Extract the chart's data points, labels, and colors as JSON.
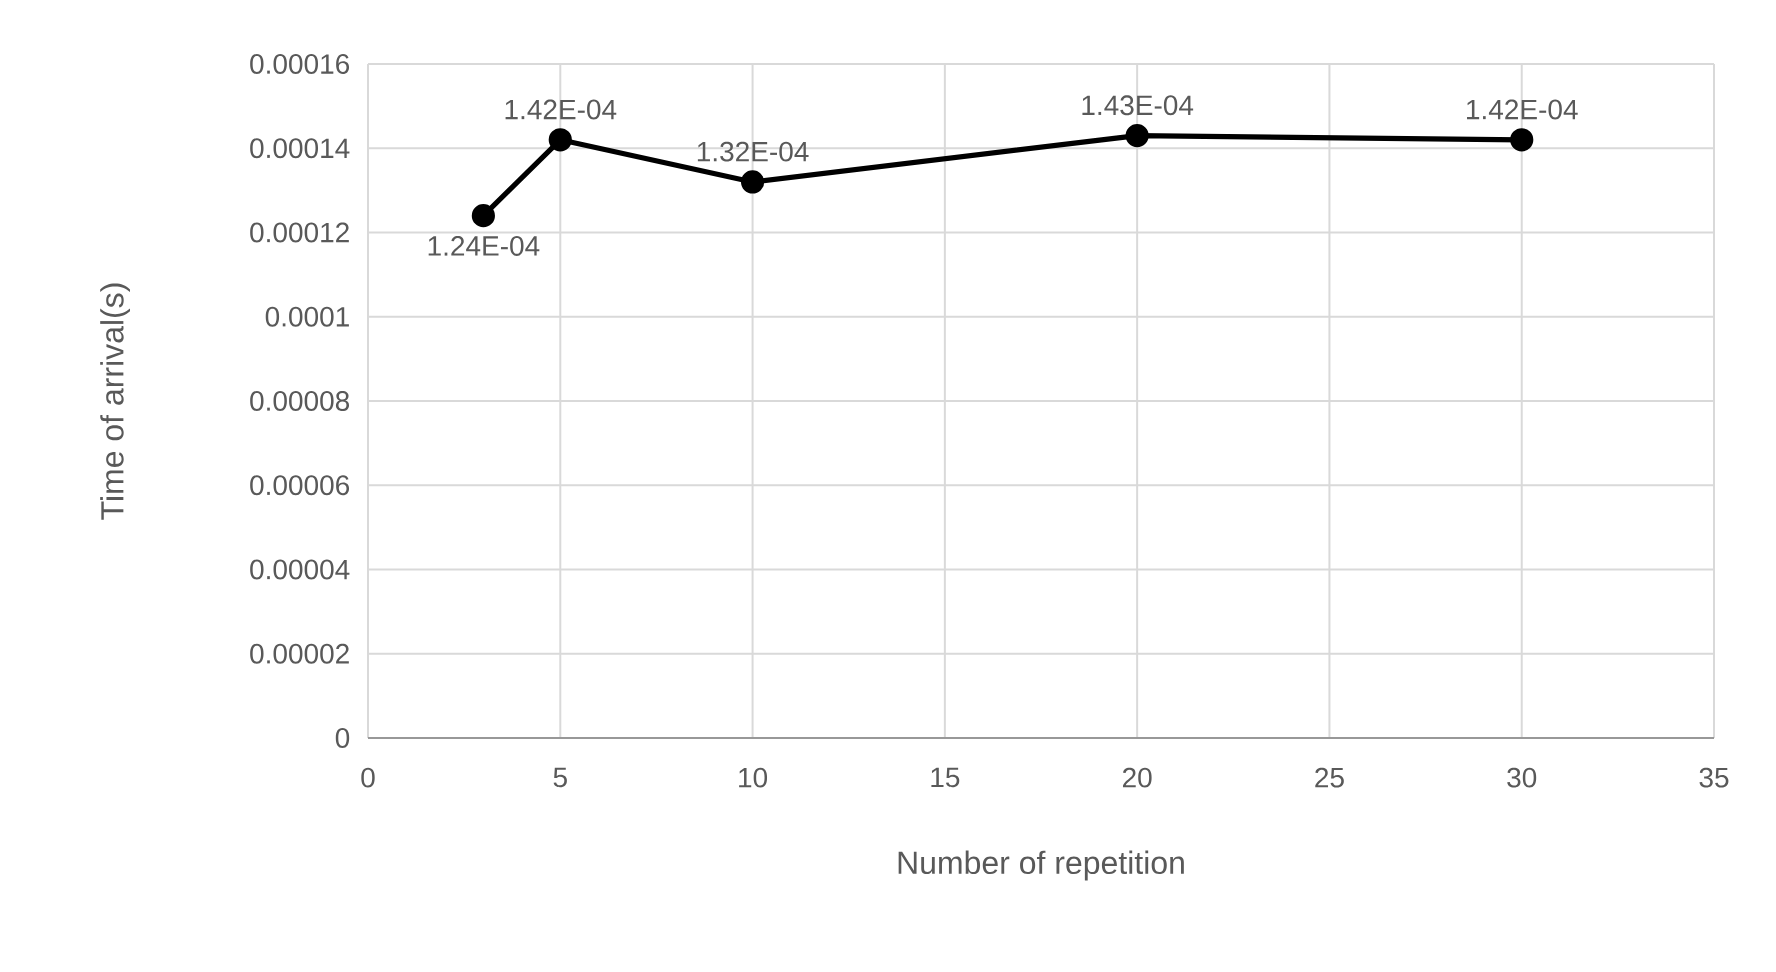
{
  "chart_data": {
    "type": "line",
    "xlabel": "Number of repetition",
    "ylabel": "Time of arrival(s)",
    "x": [
      3,
      5,
      10,
      20,
      30
    ],
    "series": [
      {
        "color": "#000000",
        "values": [
          0.000124,
          0.000142,
          0.000132,
          0.000143,
          0.000142
        ],
        "value_labels": [
          "1.24E-04",
          "1.42E-04",
          "1.32E-04",
          "1.43E-04",
          "1.42E-04"
        ]
      }
    ],
    "xlim": [
      0,
      35
    ],
    "xticks": [
      0,
      5,
      10,
      15,
      20,
      25,
      30,
      35
    ],
    "ylim": [
      0,
      0.00016
    ],
    "yticks": [
      {
        "value": 0,
        "label": "0"
      },
      {
        "value": 2e-05,
        "label": "0.00002"
      },
      {
        "value": 4e-05,
        "label": "0.00004"
      },
      {
        "value": 6e-05,
        "label": "0.00006"
      },
      {
        "value": 8e-05,
        "label": "0.00008"
      },
      {
        "value": 0.0001,
        "label": "0.0001"
      },
      {
        "value": 0.00012,
        "label": "0.00012"
      },
      {
        "value": 0.00014,
        "label": "0.00014"
      },
      {
        "value": 0.00016,
        "label": "0.00016"
      }
    ],
    "grid": true,
    "marker": "circle",
    "line_style": "solid"
  }
}
